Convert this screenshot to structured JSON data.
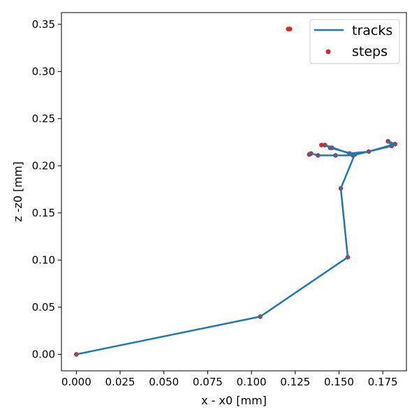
{
  "chart_data": {
    "type": "line",
    "title": "",
    "xlabel": "x - x0 [mm]",
    "ylabel": "z -z0 [mm]",
    "xlim": [
      -0.0085,
      0.1885
    ],
    "ylim": [
      -0.0175,
      0.3625
    ],
    "xticks": [
      0.0,
      0.025,
      0.05,
      0.075,
      0.1,
      0.125,
      0.15,
      0.175
    ],
    "xtick_labels": [
      "0.000",
      "0.025",
      "0.050",
      "0.075",
      "0.100",
      "0.125",
      "0.150",
      "0.175"
    ],
    "yticks": [
      0.0,
      0.05,
      0.1,
      0.15,
      0.2,
      0.25,
      0.3,
      0.35
    ],
    "ytick_labels": [
      "0.00",
      "0.05",
      "0.10",
      "0.15",
      "0.20",
      "0.25",
      "0.30",
      "0.35"
    ],
    "grid": false,
    "legend_position": "top-right",
    "series": [
      {
        "name": "tracks",
        "kind": "line",
        "color": "#1f77b4",
        "x": [
          0.0,
          0.105,
          0.155,
          0.151,
          0.159,
          0.145,
          0.142,
          0.156,
          0.167,
          0.18,
          0.178,
          0.182,
          0.18,
          0.158,
          0.148,
          0.138,
          0.134,
          0.133
        ],
        "y": [
          0.0,
          0.04,
          0.103,
          0.176,
          0.212,
          0.219,
          0.222,
          0.213,
          0.215,
          0.222,
          0.226,
          0.223,
          0.221,
          0.211,
          0.211,
          0.211,
          0.213,
          0.212
        ]
      },
      {
        "name": "steps",
        "kind": "scatter",
        "color": "#d62728",
        "x": [
          0.0,
          0.105,
          0.155,
          0.151,
          0.159,
          0.145,
          0.142,
          0.156,
          0.167,
          0.18,
          0.178,
          0.182,
          0.18,
          0.158,
          0.148,
          0.138,
          0.134,
          0.133,
          0.14,
          0.146,
          0.121,
          0.122
        ],
        "y": [
          0.0,
          0.04,
          0.103,
          0.176,
          0.212,
          0.219,
          0.222,
          0.213,
          0.215,
          0.222,
          0.226,
          0.223,
          0.221,
          0.211,
          0.211,
          0.211,
          0.213,
          0.212,
          0.222,
          0.219,
          0.345,
          0.345
        ]
      }
    ]
  },
  "legend": {
    "items": [
      {
        "label": "tracks",
        "kind": "line"
      },
      {
        "label": "steps",
        "kind": "marker"
      }
    ]
  }
}
